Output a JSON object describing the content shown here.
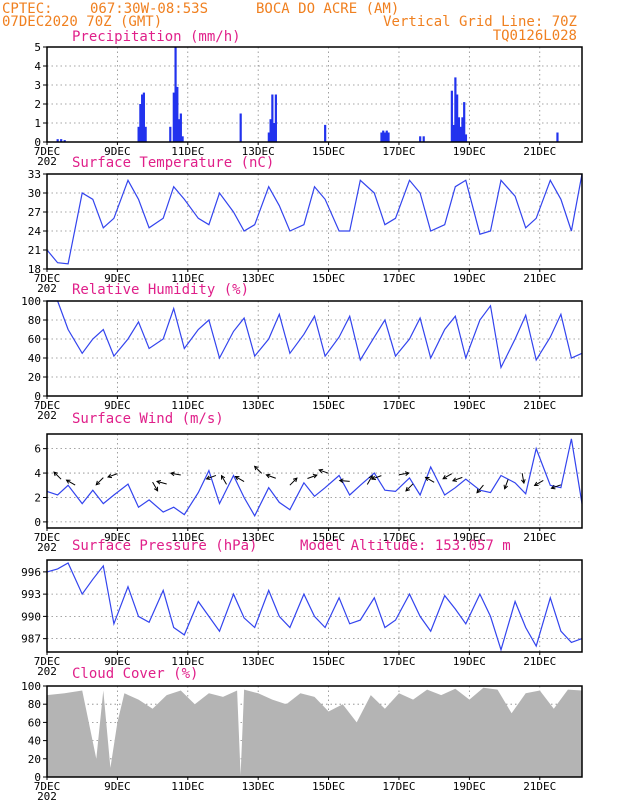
{
  "header": {
    "source": "CPTEC:",
    "coords": "067:30W-08:53S",
    "location": "BOCA DO ACRE (AM)",
    "date": "07DEC2020 70Z (GMT)",
    "vgrid": "Vertical Grid Line: 70Z",
    "code": "TQ0126L028"
  },
  "x_tick_labels": [
    "7DEC",
    "9DEC",
    "11DEC",
    "13DEC",
    "15DEC",
    "17DEC",
    "19DEC",
    "21DEC"
  ],
  "x_tick_days": [
    7,
    9,
    11,
    13,
    15,
    17,
    19,
    21
  ],
  "x_range_days": [
    7,
    22.2
  ],
  "year_fragment": "202",
  "pressure_note": "Model Altitude: 153.057 m",
  "colors": {
    "line": "#3344ee",
    "bar": "#2233ee",
    "cloud": "#b4b4b4",
    "title": "#e0208a",
    "header": "#f08020"
  },
  "chart_data": [
    {
      "type": "bar",
      "title": "Precipitation (mm/h)",
      "ylim": [
        0,
        5
      ],
      "yticks": [
        0,
        1,
        2,
        3,
        4,
        5
      ],
      "x": [
        7.3,
        7.4,
        7.5,
        9.6,
        9.65,
        9.7,
        9.75,
        9.8,
        10.5,
        10.6,
        10.65,
        10.7,
        10.75,
        10.8,
        10.85,
        12.5,
        13.3,
        13.35,
        13.4,
        13.45,
        13.5,
        14.9,
        16.5,
        16.55,
        16.6,
        16.65,
        16.7,
        17.6,
        17.7,
        18.5,
        18.55,
        18.6,
        18.65,
        18.7,
        18.75,
        18.8,
        18.85,
        18.9,
        21.5
      ],
      "values": [
        0.15,
        0.15,
        0.1,
        0.8,
        2.0,
        2.5,
        2.6,
        0.8,
        0.8,
        2.6,
        5.0,
        2.9,
        1.2,
        1.5,
        0.3,
        1.5,
        0.5,
        1.2,
        2.5,
        1.0,
        2.5,
        0.9,
        0.5,
        0.6,
        0.5,
        0.6,
        0.5,
        0.3,
        0.3,
        2.7,
        0.9,
        3.4,
        2.5,
        1.3,
        0.8,
        1.3,
        2.1,
        0.4,
        0.5
      ]
    },
    {
      "type": "line",
      "title": "Surface Temperature (nC)",
      "ylim": [
        18,
        33
      ],
      "yticks": [
        18,
        21,
        24,
        27,
        30,
        33
      ],
      "x": [
        7.0,
        7.3,
        7.6,
        8.0,
        8.3,
        8.6,
        8.9,
        9.3,
        9.6,
        9.9,
        10.3,
        10.6,
        10.9,
        11.3,
        11.6,
        11.9,
        12.3,
        12.6,
        12.9,
        13.3,
        13.6,
        13.9,
        14.3,
        14.6,
        14.9,
        15.3,
        15.6,
        15.9,
        16.3,
        16.6,
        16.9,
        17.3,
        17.6,
        17.9,
        18.3,
        18.6,
        18.9,
        19.3,
        19.6,
        19.9,
        20.3,
        20.6,
        20.9,
        21.3,
        21.6,
        21.9,
        22.2
      ],
      "values": [
        21,
        19,
        18.8,
        30,
        29,
        24.5,
        26,
        32,
        29,
        24.5,
        26,
        31,
        29,
        26,
        25,
        30,
        27,
        24,
        25,
        31,
        28,
        24,
        25,
        31,
        29,
        24,
        24,
        32,
        30,
        25,
        26,
        32,
        30,
        24,
        25,
        31,
        32,
        23.5,
        24,
        32,
        29.5,
        24.5,
        26,
        32,
        29,
        24,
        33
      ],
      "series_name": "temperature"
    },
    {
      "type": "line",
      "title": "Relative Humidity (%)",
      "ylim": [
        0,
        100
      ],
      "yticks": [
        0,
        20,
        40,
        60,
        80,
        100
      ],
      "x": [
        7.0,
        7.3,
        7.6,
        8.0,
        8.3,
        8.6,
        8.9,
        9.3,
        9.6,
        9.9,
        10.3,
        10.6,
        10.9,
        11.3,
        11.6,
        11.9,
        12.3,
        12.6,
        12.9,
        13.3,
        13.6,
        13.9,
        14.3,
        14.6,
        14.9,
        15.3,
        15.6,
        15.9,
        16.3,
        16.6,
        16.9,
        17.3,
        17.6,
        17.9,
        18.3,
        18.6,
        18.9,
        19.3,
        19.6,
        19.9,
        20.3,
        20.6,
        20.9,
        21.3,
        21.6,
        21.9,
        22.2
      ],
      "values": [
        100,
        100,
        70,
        45,
        60,
        70,
        42,
        60,
        78,
        50,
        60,
        92,
        50,
        70,
        80,
        40,
        68,
        82,
        42,
        60,
        86,
        45,
        65,
        84,
        42,
        62,
        84,
        38,
        62,
        80,
        42,
        60,
        82,
        40,
        70,
        84,
        40,
        80,
        95,
        30,
        60,
        85,
        38,
        62,
        86,
        40,
        45
      ]
    },
    {
      "type": "line",
      "title": "Surface Wind (m/s)",
      "ylim": [
        -0.5,
        7.2
      ],
      "yticks": [
        0,
        2,
        4,
        6
      ],
      "x": [
        7.0,
        7.3,
        7.6,
        8.0,
        8.3,
        8.6,
        8.9,
        9.3,
        9.6,
        9.9,
        10.3,
        10.6,
        10.9,
        11.3,
        11.6,
        11.9,
        12.3,
        12.6,
        12.9,
        13.3,
        13.6,
        13.9,
        14.3,
        14.6,
        14.9,
        15.3,
        15.6,
        15.9,
        16.3,
        16.6,
        16.9,
        17.3,
        17.6,
        17.9,
        18.3,
        18.6,
        18.9,
        19.3,
        19.6,
        19.9,
        20.3,
        20.6,
        20.9,
        21.3,
        21.6,
        21.9,
        22.2
      ],
      "values": [
        2.5,
        2.2,
        3.0,
        1.5,
        2.6,
        1.5,
        2.2,
        3.1,
        1.2,
        1.8,
        0.8,
        1.2,
        0.6,
        2.4,
        4.2,
        1.5,
        3.8,
        2.0,
        0.5,
        2.8,
        1.6,
        1.0,
        3.2,
        2.1,
        2.8,
        3.8,
        2.2,
        3.0,
        4.0,
        2.6,
        2.5,
        3.6,
        2.2,
        4.5,
        2.2,
        2.8,
        3.5,
        2.6,
        2.4,
        3.8,
        3.2,
        2.3,
        6.0,
        3.0,
        2.8,
        6.8,
        1.5
      ],
      "arrows": {
        "x": [
          7.4,
          7.8,
          8.6,
          9.0,
          10.0,
          10.4,
          10.8,
          11.8,
          12.1,
          12.6,
          13.1,
          13.5,
          13.9,
          14.4,
          15.0,
          15.6,
          16.1,
          16.5,
          17.0,
          17.4,
          18.0,
          18.5,
          18.8,
          19.4,
          20.1,
          20.5,
          21.1,
          21.6
        ],
        "angles": [
          135,
          150,
          225,
          200,
          300,
          165,
          170,
          200,
          120,
          150,
          135,
          160,
          45,
          20,
          160,
          175,
          60,
          200,
          10,
          225,
          150,
          210,
          200,
          230,
          250,
          280,
          210,
          200
        ]
      }
    },
    {
      "type": "line",
      "title": "Surface Pressure (hPa)",
      "ylim": [
        985.2,
        997.6
      ],
      "yticks": [
        987,
        990,
        993,
        996
      ],
      "x": [
        7.0,
        7.3,
        7.6,
        8.0,
        8.3,
        8.6,
        8.9,
        9.3,
        9.6,
        9.9,
        10.3,
        10.6,
        10.9,
        11.3,
        11.6,
        11.9,
        12.3,
        12.6,
        12.9,
        13.3,
        13.6,
        13.9,
        14.3,
        14.6,
        14.9,
        15.3,
        15.6,
        15.9,
        16.3,
        16.6,
        16.9,
        17.3,
        17.6,
        17.9,
        18.3,
        18.6,
        18.9,
        19.3,
        19.6,
        19.9,
        20.3,
        20.6,
        20.9,
        21.3,
        21.6,
        21.9,
        22.2
      ],
      "values": [
        996,
        996.4,
        997.2,
        993,
        995,
        996.8,
        989,
        994,
        990,
        989.2,
        993.5,
        988.5,
        987.5,
        992,
        990,
        988,
        993,
        989.8,
        988.5,
        993.5,
        990,
        988.5,
        993,
        990,
        988.5,
        992.5,
        989,
        989.5,
        992.5,
        988.5,
        989.5,
        993,
        990,
        988,
        992.8,
        991,
        989,
        993,
        990,
        985.5,
        992,
        988.5,
        986,
        992.5,
        988,
        986.5,
        987
      ]
    },
    {
      "type": "area",
      "title": "Cloud Cover (%)",
      "ylim": [
        0,
        100
      ],
      "yticks": [
        0,
        20,
        40,
        60,
        80,
        100
      ],
      "x": [
        7.0,
        7.5,
        8.0,
        8.4,
        8.6,
        8.8,
        9.0,
        9.2,
        9.6,
        10.0,
        10.4,
        10.8,
        11.2,
        11.6,
        12.0,
        12.4,
        12.5,
        12.6,
        13.0,
        13.4,
        13.8,
        14.2,
        14.6,
        15.0,
        15.4,
        15.8,
        16.2,
        16.6,
        17.0,
        17.4,
        17.8,
        18.2,
        18.6,
        19.0,
        19.4,
        19.8,
        20.2,
        20.6,
        21.0,
        21.4,
        21.8,
        22.2
      ],
      "values": [
        90,
        92,
        95,
        20,
        95,
        10,
        60,
        92,
        85,
        75,
        90,
        95,
        80,
        92,
        88,
        95,
        2,
        96,
        92,
        85,
        80,
        92,
        88,
        72,
        80,
        60,
        90,
        75,
        92,
        85,
        96,
        90,
        97,
        85,
        98,
        96,
        70,
        92,
        95,
        75,
        96,
        95
      ]
    }
  ]
}
